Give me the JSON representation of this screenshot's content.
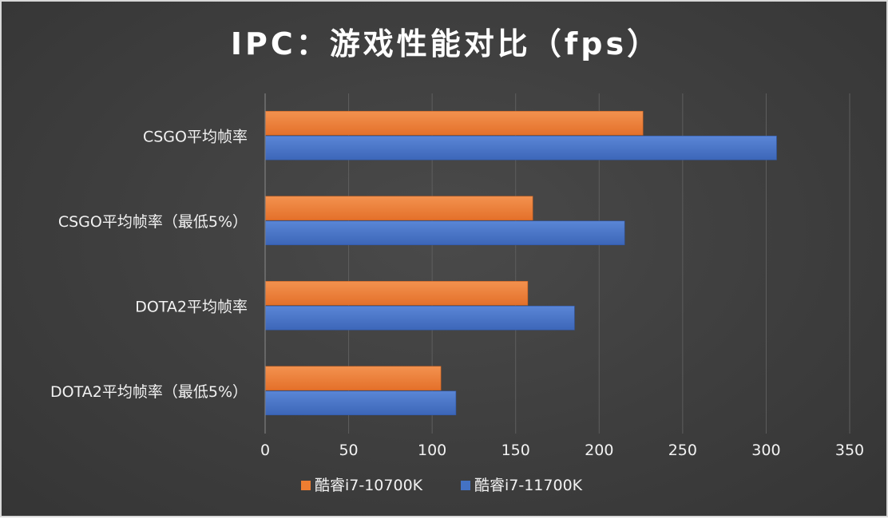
{
  "chart_data": {
    "type": "bar",
    "orientation": "horizontal",
    "title": "IPC：游戏性能对比（fps）",
    "categories": [
      "CSGO平均帧率",
      "CSGO平均帧率（最低5%）",
      "DOTA2平均帧率",
      "DOTA2平均帧率（最低5%）"
    ],
    "series": [
      {
        "name": "酷睿i7-10700K",
        "color": "#ed7d31",
        "values": [
          226,
          160,
          157,
          105
        ]
      },
      {
        "name": "酷睿i7-11700K",
        "color": "#4472c4",
        "values": [
          306,
          215,
          185,
          114
        ]
      }
    ],
    "xlim": [
      0,
      350
    ],
    "xticks": [
      0,
      50,
      100,
      150,
      200,
      250,
      300,
      350
    ],
    "grid": true,
    "legend_position": "bottom",
    "xlabel": "",
    "ylabel": ""
  }
}
